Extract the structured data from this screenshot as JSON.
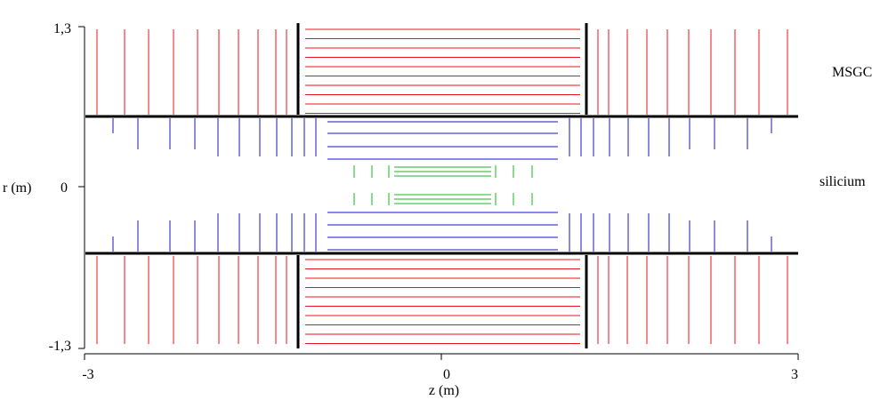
{
  "axes": {
    "y_label": "r (m)",
    "y_ticks": [
      "1,3",
      "0",
      "-1,3"
    ],
    "x_label": "z (m)",
    "x_ticks": [
      "-3",
      "0",
      "3"
    ]
  },
  "regions": {
    "msgc": "MSGC",
    "silicium": "silicium"
  },
  "colors": {
    "msgc": "#e8141e",
    "inner_tracker": "#1414c8",
    "silicon": "#18b418",
    "frame": "#000000"
  }
}
